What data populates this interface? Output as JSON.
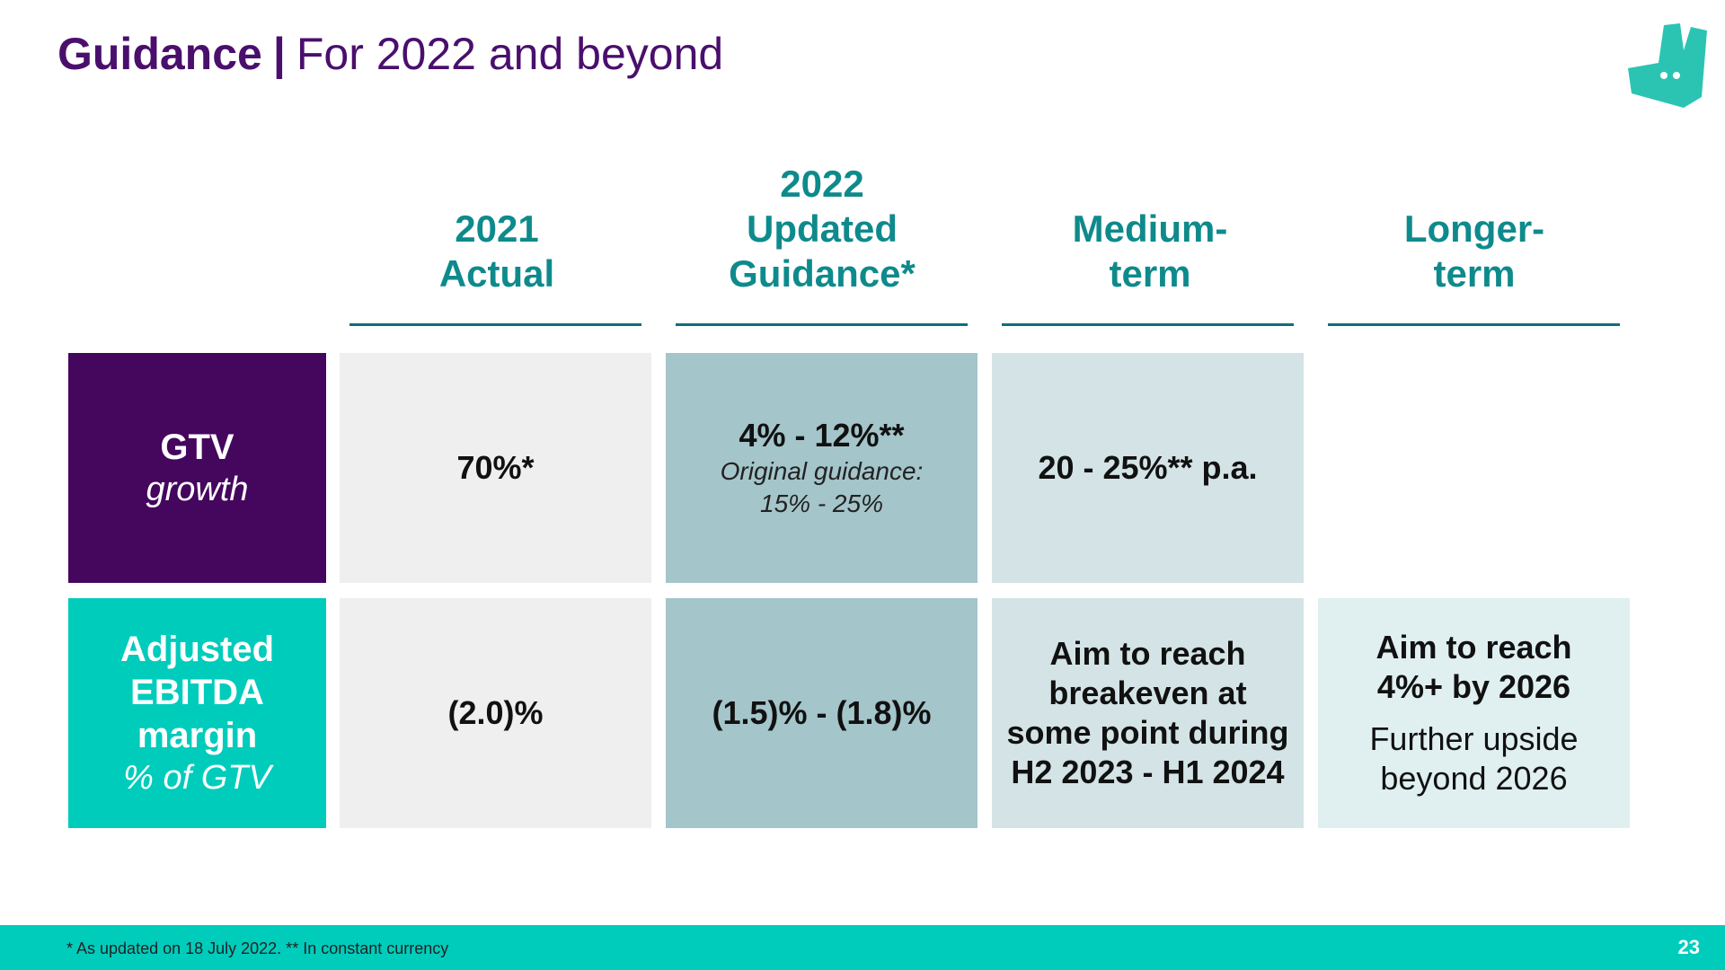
{
  "header": {
    "title_bold": "Guidance",
    "separator": "|",
    "title_rest": "For 2022 and beyond"
  },
  "logo": {
    "icon": "kangaroo-logo-icon",
    "color": "#2bc4b3"
  },
  "columns": [
    {
      "label": "2021\nActual"
    },
    {
      "label": "2022\nUpdated\nGuidance*"
    },
    {
      "label": "Medium-\nterm"
    },
    {
      "label": "Longer-\nterm"
    }
  ],
  "rows": {
    "gtv": {
      "label_bold": "GTV",
      "label_italic": "growth",
      "actual_2021": "70%*",
      "guidance_2022": "4% - 12%**",
      "guidance_2022_note": "Original guidance:\n15% - 25%",
      "medium_term": "20 - 25%** p.a."
    },
    "ebitda": {
      "label_bold": "Adjusted\nEBITDA margin",
      "label_italic": "% of GTV",
      "actual_2021": "(2.0)%",
      "guidance_2022": "(1.5)% - (1.8)%",
      "medium_term": "Aim to reach\nbreakeven at\nsome point during\nH2 2023 - H1 2024",
      "longer_term": "Aim to reach\n4%+ by 2026",
      "longer_term_note": "Further upside\nbeyond 2026"
    }
  },
  "footer": {
    "footnote": "* As updated on 18 July 2022. ** In constant currency",
    "page_number": "23"
  },
  "colors": {
    "title": "#4a0f6d",
    "header_teal": "#0e8a8c",
    "gtv_label_bg": "#45065e",
    "ebitda_label_bg": "#00ccbc",
    "actual_bg": "#efefef",
    "guidance_bg": "#a4c5ca",
    "medium_bg": "#d3e3e6",
    "longer_bg": "#e0eff0",
    "footer_bg": "#00ccbc"
  }
}
